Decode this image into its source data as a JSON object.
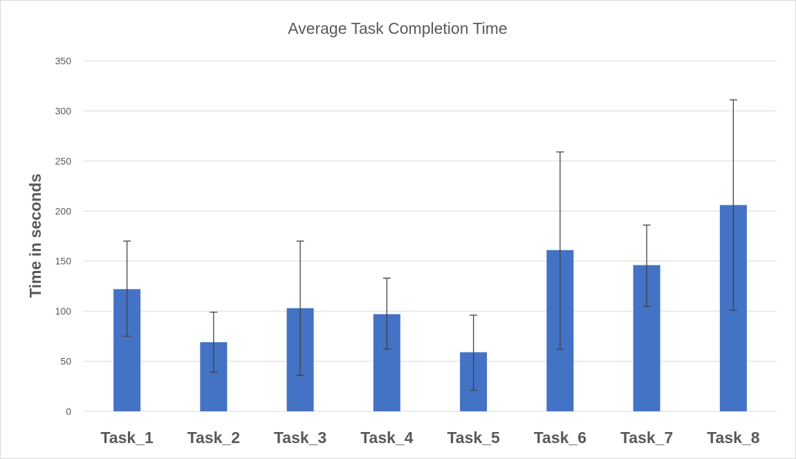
{
  "chart_data": {
    "type": "bar",
    "title": "Average Task Completion Time",
    "xlabel": "",
    "ylabel": "Time in seconds",
    "ylim": [
      0,
      350
    ],
    "yticks": [
      0,
      50,
      100,
      150,
      200,
      250,
      300,
      350
    ],
    "grid": true,
    "legend": "none",
    "categories": [
      "Task_1",
      "Task_2",
      "Task_3",
      "Task_4",
      "Task_5",
      "Task_6",
      "Task_7",
      "Task_8"
    ],
    "series": [
      {
        "values": [
          122,
          69,
          103,
          97,
          59,
          161,
          146,
          206
        ],
        "error_minus": [
          47,
          30,
          67,
          35,
          38,
          99,
          41,
          105
        ],
        "error_plus": [
          48,
          30,
          67,
          36,
          37,
          98,
          40,
          105
        ],
        "color": "#4472c4"
      }
    ]
  }
}
